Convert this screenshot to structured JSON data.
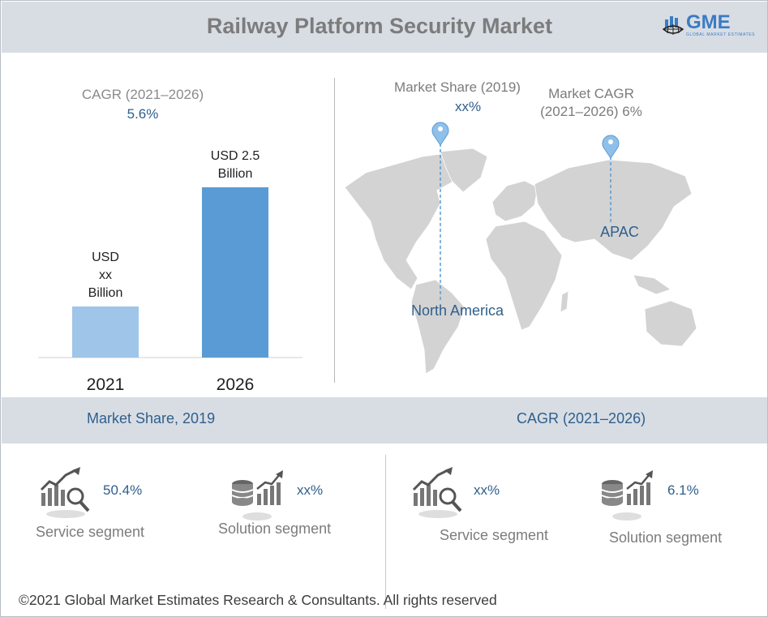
{
  "header": {
    "title": "Railway Platform Security Market",
    "logo_text": "GME",
    "logo_subtext": "GLOBAL MARKET ESTIMATES"
  },
  "left_panel": {
    "cagr_label": "CAGR (2021–2026)",
    "cagr_value": "5.6%"
  },
  "chart_data": {
    "type": "bar",
    "categories": [
      "2021",
      "2026"
    ],
    "values": [
      null,
      2.5
    ],
    "data_labels": [
      "USD\nxx\nBillion",
      "USD 2.5\nBillion"
    ],
    "bar_colors": [
      "#9fc5e8",
      "#5b9bd5"
    ],
    "relative_heights": [
      0.3,
      1.0
    ],
    "xlabel": "",
    "ylabel": "",
    "grid": false
  },
  "map": {
    "pin1_label": "Market Share (2019)",
    "pin1_value": "xx%",
    "pin2_label_line1": "Market CAGR",
    "pin2_label_line2": "(2021–2026) 6%",
    "region1": "North America",
    "region2": "APAC",
    "land_color": "#d3d3d3",
    "pin_color": "#8ec0ea"
  },
  "band": {
    "left": "Market Share, 2019",
    "right": "CAGR (2021–2026)"
  },
  "stats": [
    {
      "icon": "growth-chart-magnifier-icon",
      "value": "50.4%",
      "label": "Service segment"
    },
    {
      "icon": "database-growth-icon",
      "value": "xx%",
      "label": "Solution segment"
    },
    {
      "icon": "growth-chart-magnifier-icon",
      "value": "xx%",
      "label": "Service segment"
    },
    {
      "icon": "database-growth-icon",
      "value": "6.1%",
      "label": "Solution segment"
    }
  ],
  "footer": "©2021 Global Market Estimates Research & Consultants. All rights reserved",
  "colors": {
    "accent": "#2f5f8c",
    "header_bg": "#d8dde4",
    "bar_light": "#9fc5e8",
    "bar_dark": "#5b9bd5"
  }
}
